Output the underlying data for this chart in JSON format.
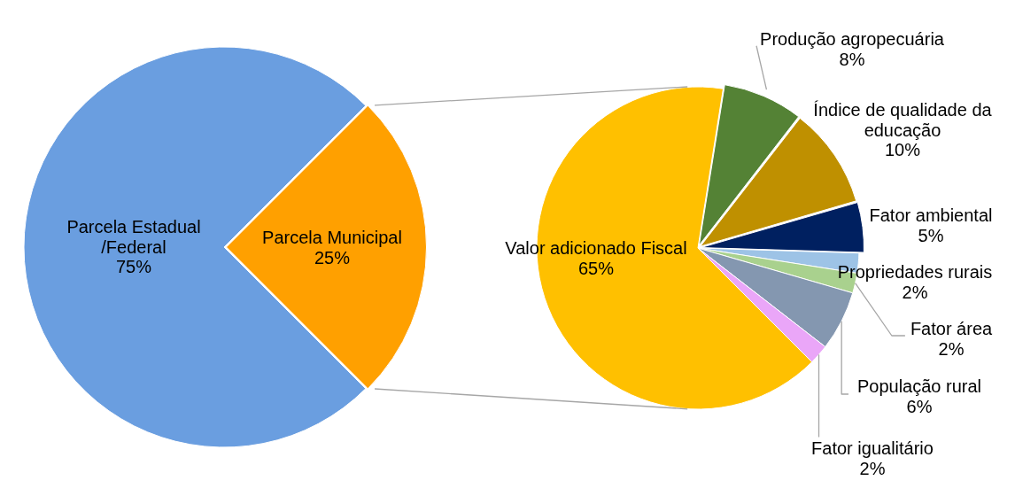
{
  "chart_data": [
    {
      "type": "pie",
      "categories": [
        "Parcela Estadual /Federal",
        "Parcela Municipal"
      ],
      "values": [
        75,
        25
      ],
      "colors": [
        "#6a9ee0",
        "#ffa000"
      ],
      "value_labels": [
        "75%",
        "25%"
      ]
    },
    {
      "type": "pie",
      "categories": [
        "Valor adicionado Fiscal",
        "Produção agropecuária",
        "Índice de qualidade da educação",
        "Fator ambiental",
        "Propriedades rurais",
        "Fator área",
        "População rural",
        "Fator igualitário"
      ],
      "values": [
        65,
        8,
        10,
        5,
        2,
        2,
        6,
        2
      ],
      "colors": [
        "#ffc000",
        "#548235",
        "#bf9000",
        "#002060",
        "#9dc3e6",
        "#a9d18e",
        "#8497b0",
        "#eaa6f8"
      ],
      "value_labels": [
        "65%",
        "8%",
        "10%",
        "5%",
        "2%",
        "2%",
        "6%",
        "2%"
      ]
    }
  ]
}
